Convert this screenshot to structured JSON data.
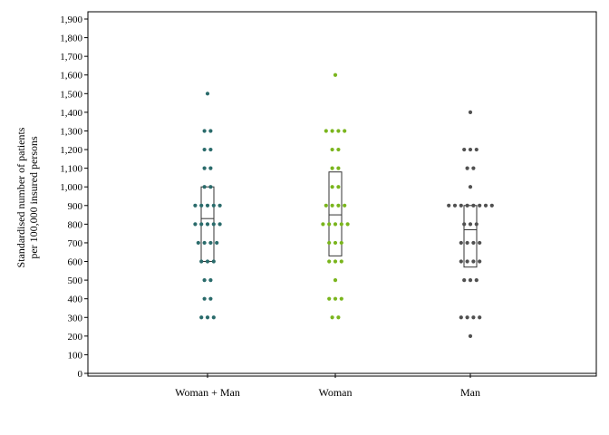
{
  "chart_data": {
    "type": "scatter",
    "subtype": "dot-strip with box",
    "title": "",
    "xlabel": "",
    "ylabel": [
      "Standardised number of patients",
      "per 100,000 insured persons"
    ],
    "ylim": [
      0,
      1900
    ],
    "yticks": [
      "0",
      "100",
      "200",
      "300",
      "400",
      "500",
      "600",
      "700",
      "800",
      "900",
      "1,000",
      "1,100",
      "1,200",
      "1,300",
      "1,400",
      "1,500",
      "1,600",
      "1,700",
      "1,800",
      "1,900"
    ],
    "grid": false,
    "legend": "none",
    "categories": [
      "Woman + Man",
      "Woman",
      "Man"
    ],
    "series": [
      {
        "color": "#2a6b6b",
        "values": [
          1500,
          1300,
          1300,
          1200,
          1200,
          1100,
          1100,
          1000,
          1000,
          900,
          900,
          900,
          900,
          900,
          800,
          800,
          800,
          800,
          800,
          700,
          700,
          700,
          700,
          600,
          600,
          600,
          500,
          500,
          400,
          400,
          300,
          300,
          300
        ],
        "box": {
          "q1": 600,
          "median": 830,
          "q3": 1000
        }
      },
      {
        "color": "#7ab51d",
        "values": [
          1600,
          1300,
          1300,
          1300,
          1300,
          1200,
          1200,
          1100,
          1100,
          1000,
          1000,
          900,
          900,
          900,
          900,
          800,
          800,
          800,
          800,
          800,
          700,
          700,
          700,
          600,
          600,
          600,
          500,
          400,
          400,
          400,
          300,
          300
        ],
        "box": {
          "q1": 630,
          "median": 850,
          "q3": 1080
        }
      },
      {
        "color": "#505050",
        "values": [
          1400,
          1200,
          1200,
          1200,
          1100,
          1100,
          1000,
          900,
          900,
          900,
          900,
          900,
          900,
          900,
          900,
          800,
          800,
          800,
          700,
          700,
          700,
          700,
          600,
          600,
          600,
          600,
          500,
          500,
          500,
          300,
          300,
          300,
          300,
          200
        ],
        "box": {
          "q1": 570,
          "median": 770,
          "q3": 900
        }
      }
    ]
  }
}
